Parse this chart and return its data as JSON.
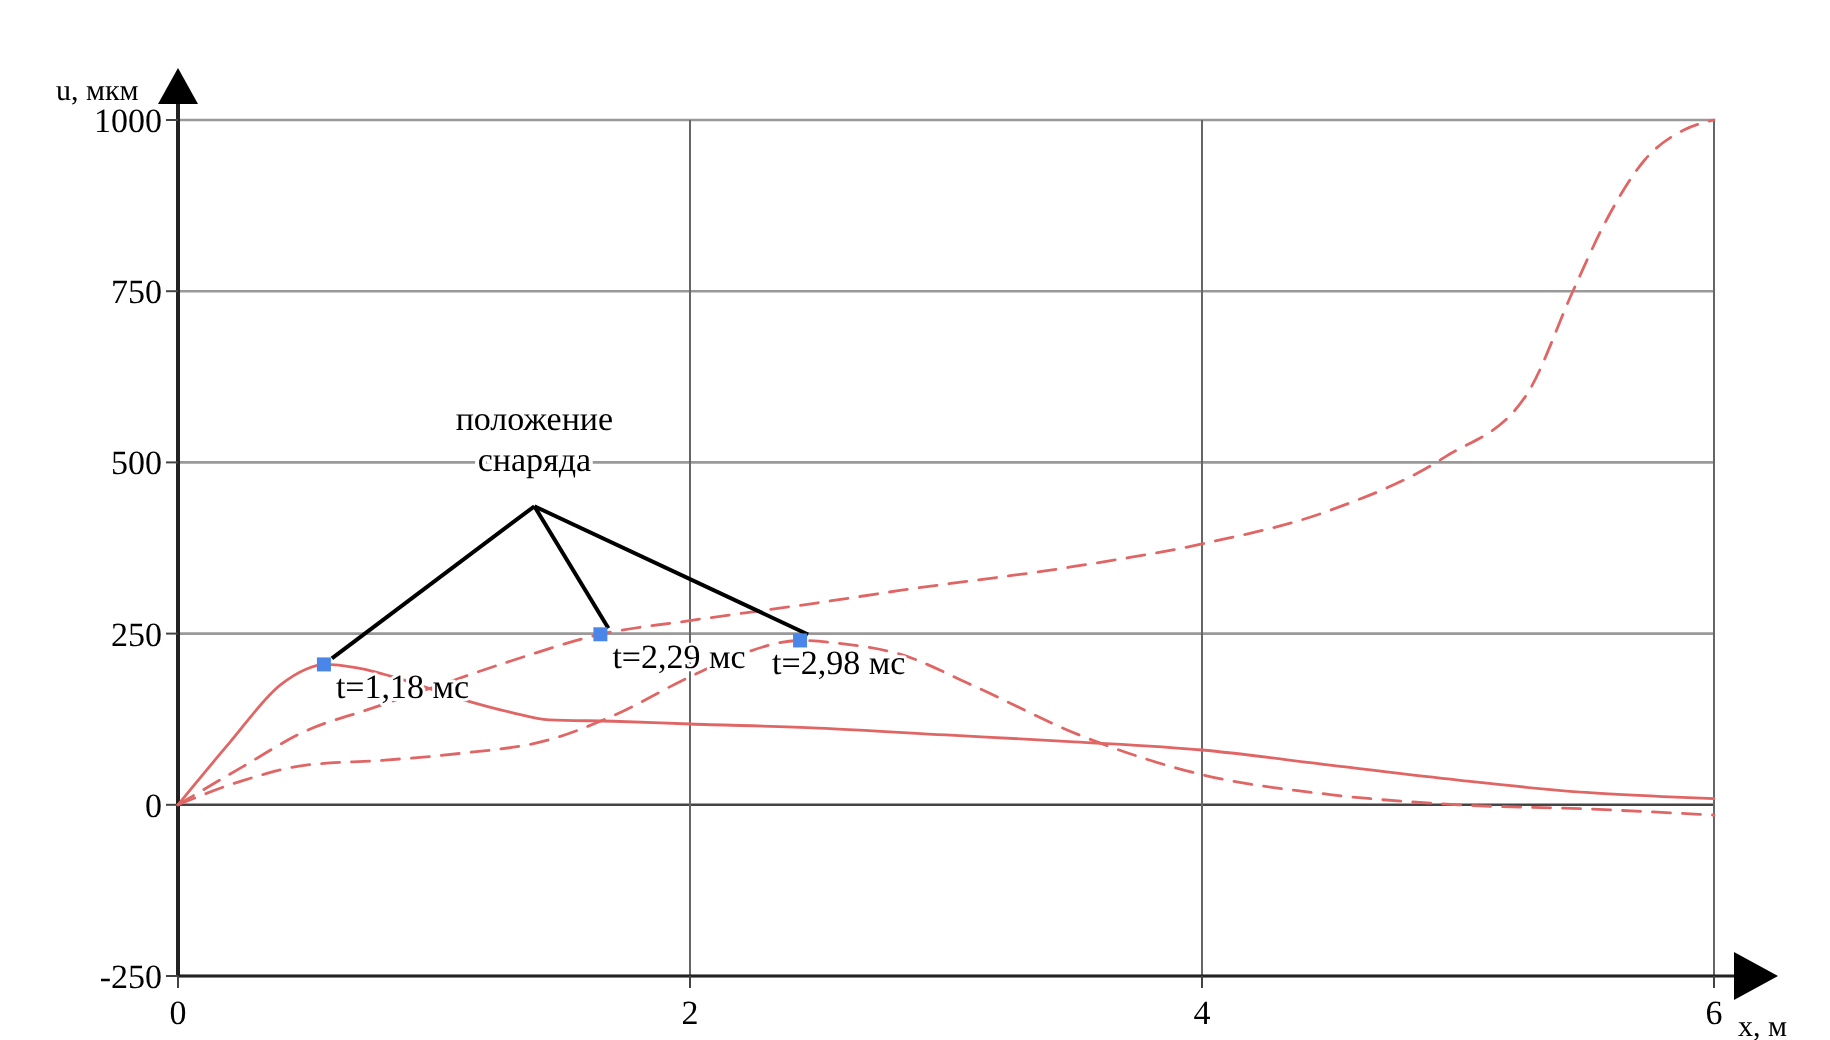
{
  "chart_data": {
    "type": "line",
    "xlabel": "x, м",
    "ylabel": "u, мкм",
    "xlim": [
      0,
      6
    ],
    "ylim": [
      -250,
      1000
    ],
    "xticks": [
      0,
      2,
      4,
      6
    ],
    "yticks": [
      -250,
      0,
      250,
      500,
      750,
      1000
    ],
    "grid": true,
    "series": [
      {
        "color": "#e06666",
        "line_style": "solid",
        "x": [
          0,
          0.2,
          0.4,
          0.5,
          0.57,
          0.7,
          0.9,
          1.1,
          1.3,
          1.45,
          1.7,
          2,
          2.5,
          3,
          3.5,
          4,
          4.5,
          5,
          5.5,
          5.8,
          6
        ],
        "values": [
          0,
          90,
          175,
          198,
          205,
          200,
          180,
          155,
          135,
          124,
          122,
          118,
          112,
          102,
          92,
          80,
          58,
          36,
          18,
          12,
          9
        ]
      },
      {
        "color": "#e06666",
        "line_style": "dashed",
        "x": [
          0,
          0.25,
          0.5,
          0.75,
          1,
          1.3,
          1.65,
          2,
          2.5,
          2.82,
          3.5,
          4,
          4.5,
          4.95,
          5.27,
          5.45,
          5.58,
          5.73,
          5.88,
          6
        ],
        "values": [
          0,
          55,
          108,
          140,
          172,
          210,
          249,
          269,
          295,
          313,
          348,
          381,
          430,
          508,
          600,
          751,
          854,
          942,
          985,
          1000
        ]
      },
      {
        "color": "#e06666",
        "line_style": "dashed",
        "x": [
          0,
          0.25,
          0.5,
          0.8,
          1.1,
          1.44,
          1.7,
          2,
          2.2,
          2.43,
          2.6,
          2.82,
          3.1,
          3.52,
          4,
          4.5,
          5,
          5.5,
          6
        ],
        "values": [
          0,
          35,
          58,
          65,
          75,
          94,
          130,
          187,
          220,
          240,
          235,
          220,
          175,
          102,
          44,
          15,
          0,
          -6,
          -15
        ]
      },
      {
        "type": "scatter",
        "color": "#4a86e8",
        "marker": "square",
        "x": [
          0.57,
          1.65,
          2.43
        ],
        "values": [
          205,
          249,
          240
        ]
      }
    ],
    "annotations": [
      {
        "text": "положение снаряда",
        "x": 1.65,
        "y": 249
      },
      {
        "text": "t=1,18 мс",
        "x": 0.57,
        "y": 205
      },
      {
        "text": "t=2,29 мс",
        "x": 1.65,
        "y": 249
      },
      {
        "text": "t=2,98 мс",
        "x": 2.43,
        "y": 240
      }
    ]
  }
}
